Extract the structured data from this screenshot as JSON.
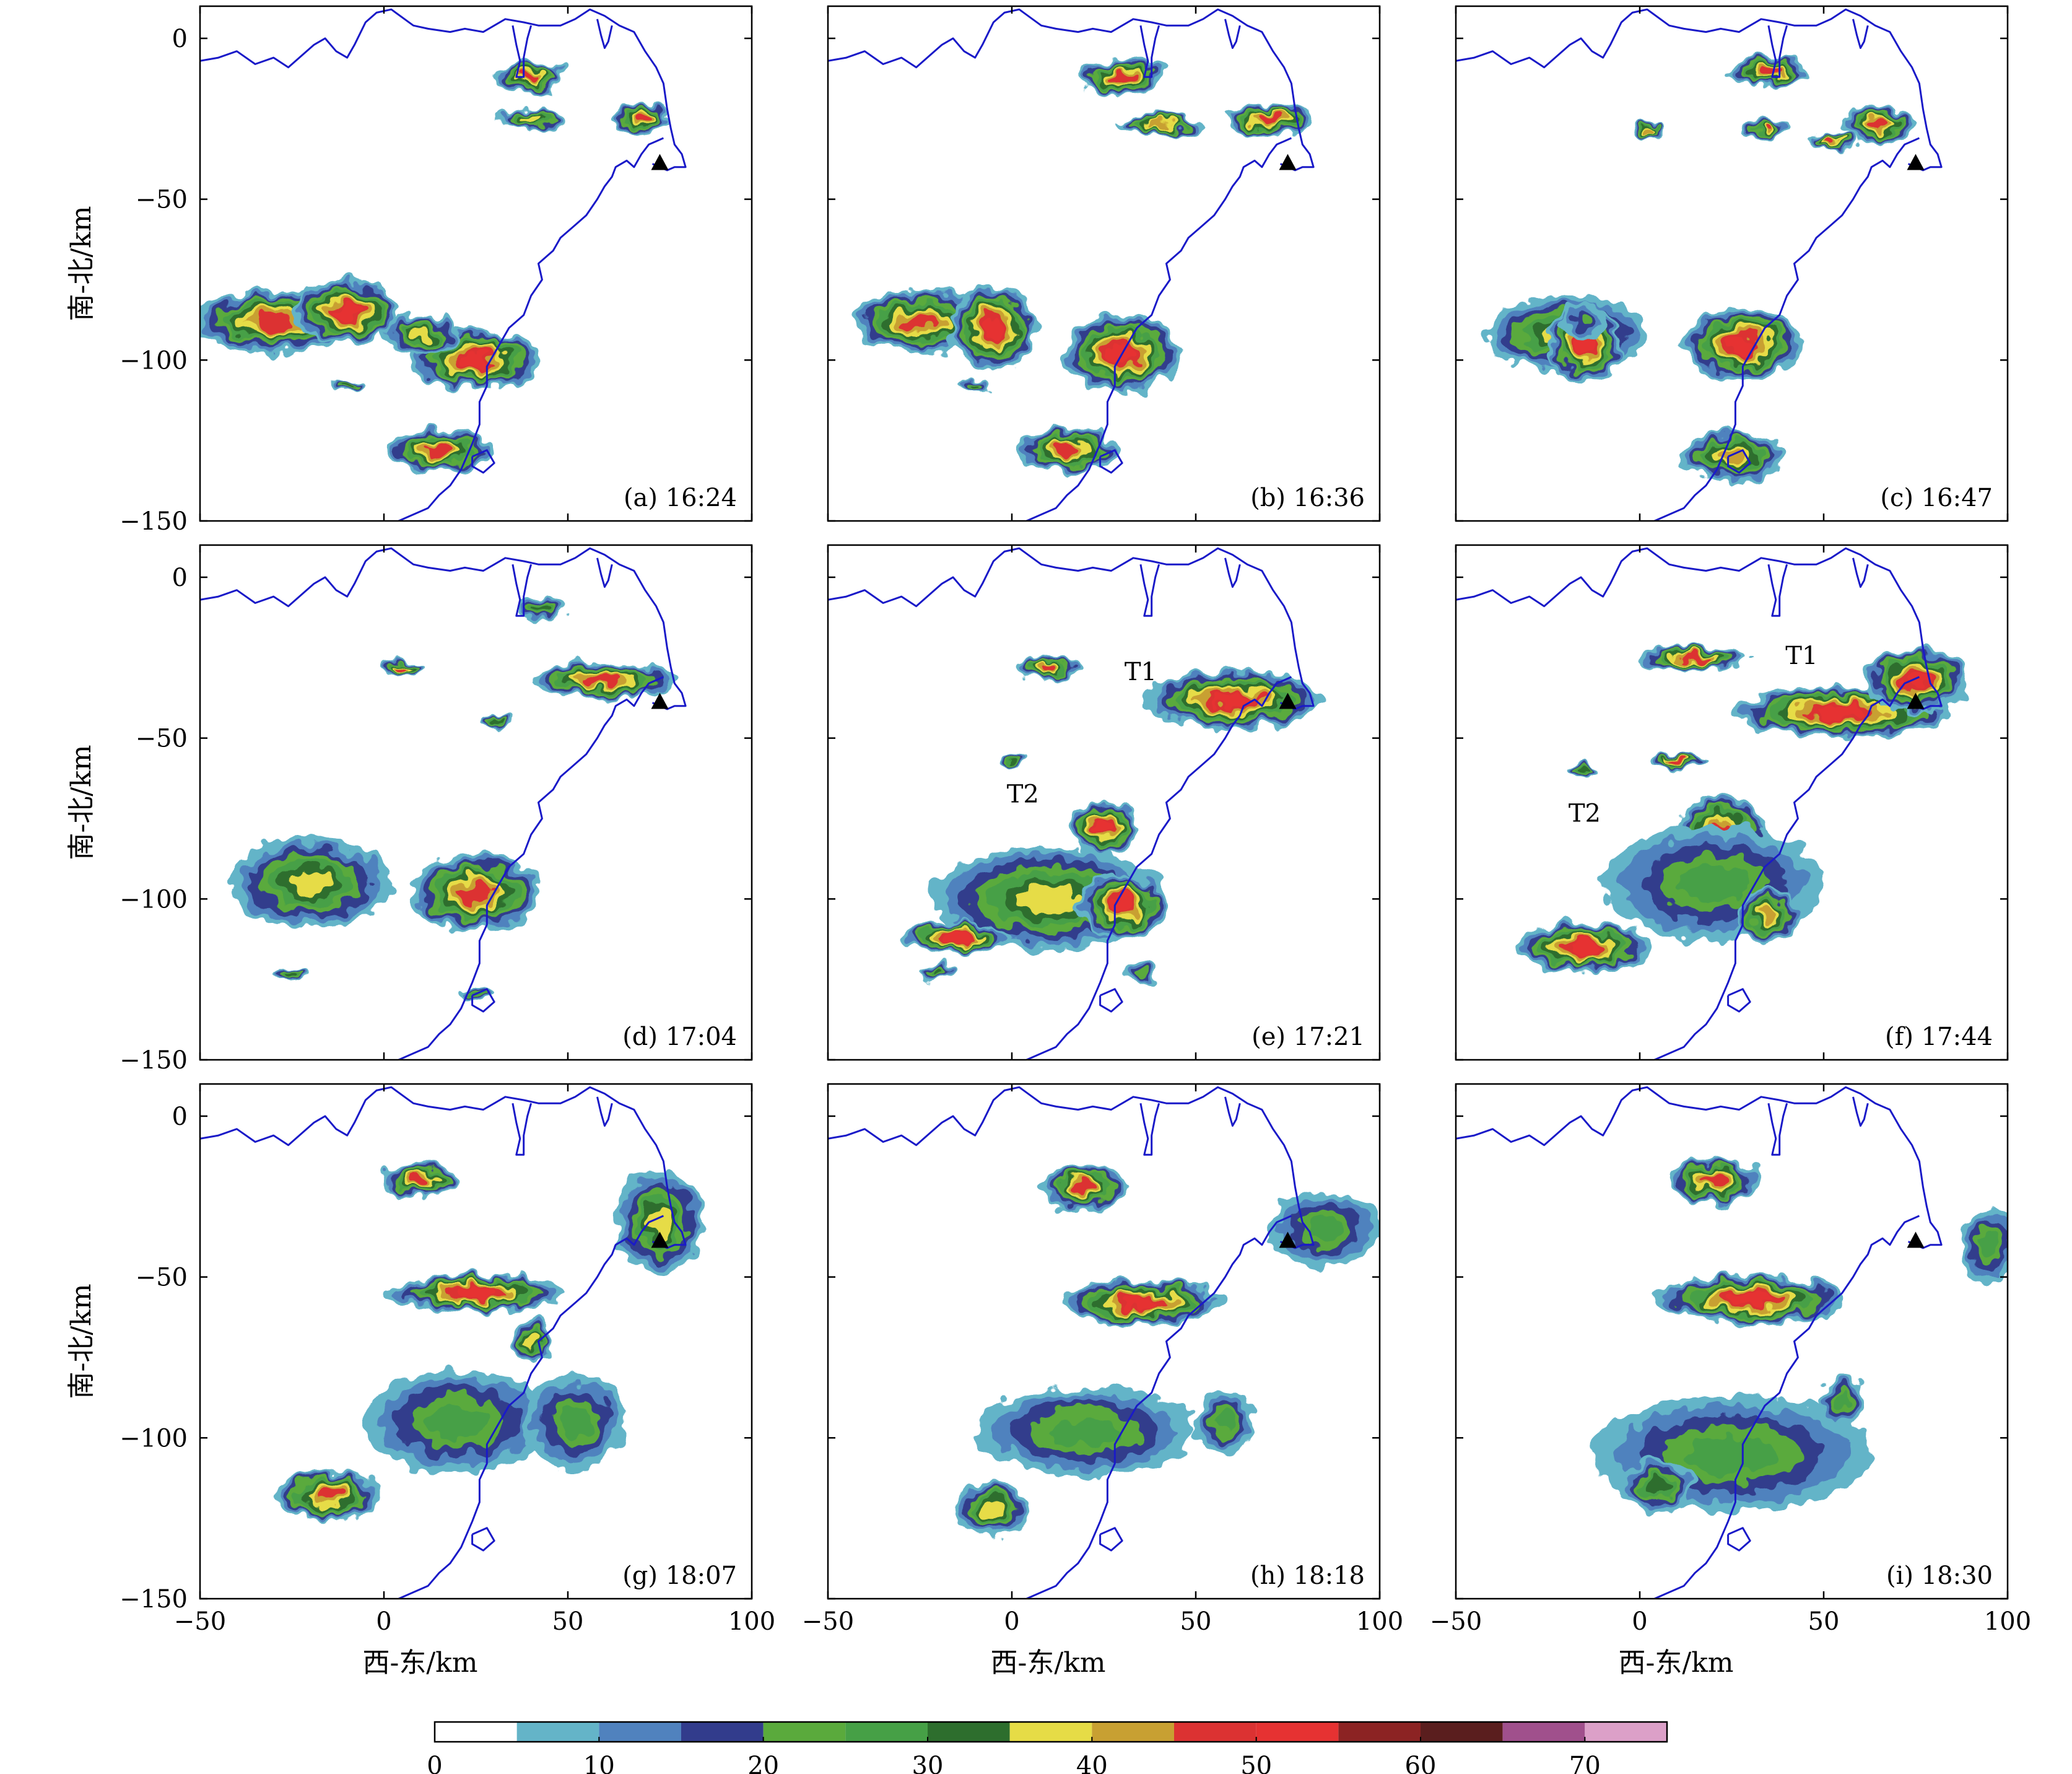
{
  "chart_data": {
    "type": "heatmap",
    "description_units": "radar reflectivity, dBZ",
    "shared": {
      "xlim": [
        -50,
        100
      ],
      "ylim": [
        -150,
        10
      ],
      "xticks": [
        -50,
        0,
        50,
        100
      ],
      "yticks": [
        0,
        -50,
        -100,
        -150
      ],
      "xlabel": "西-东/km",
      "ylabel": "南-北/km",
      "station_marker": {
        "x": 75,
        "y": -39
      }
    },
    "colorbar": {
      "ticks": [
        0,
        10,
        20,
        30,
        40,
        50,
        60,
        70
      ],
      "bounds": [
        0,
        5,
        10,
        15,
        20,
        25,
        30,
        35,
        40,
        45,
        50,
        55,
        60,
        65,
        70,
        75
      ],
      "colors": [
        "#ffffff",
        "#64b4c8",
        "#5082be",
        "#323c8c",
        "#5aaa3c",
        "#46a046",
        "#2d6e2d",
        "#e6dc46",
        "#c8a032",
        "#dc3232",
        "#e63232",
        "#8c2323",
        "#5a1e1e",
        "#a0508c",
        "#dca0c8"
      ]
    },
    "panels": [
      {
        "label": "(a) 16:24",
        "time": "16:24",
        "storms": [
          {
            "x": -30,
            "y": -88,
            "rx": 22,
            "ry": 10,
            "peak": 52
          },
          {
            "x": -10,
            "y": -85,
            "rx": 14,
            "ry": 10,
            "peak": 55
          },
          {
            "x": 25,
            "y": -100,
            "rx": 18,
            "ry": 9,
            "peak": 55
          },
          {
            "x": 10,
            "y": -92,
            "rx": 10,
            "ry": 6,
            "peak": 40
          },
          {
            "x": 40,
            "y": -12,
            "rx": 10,
            "ry": 5,
            "peak": 52
          },
          {
            "x": 40,
            "y": -25,
            "rx": 10,
            "ry": 3,
            "peak": 40
          },
          {
            "x": 70,
            "y": -25,
            "rx": 8,
            "ry": 5,
            "peak": 52
          },
          {
            "x": 15,
            "y": -128,
            "rx": 14,
            "ry": 7,
            "peak": 50
          },
          {
            "x": -10,
            "y": -108,
            "rx": 4,
            "ry": 2,
            "peak": 35
          }
        ]
      },
      {
        "label": "(b) 16:36",
        "time": "16:36",
        "storms": [
          {
            "x": -25,
            "y": -88,
            "rx": 18,
            "ry": 10,
            "peak": 52
          },
          {
            "x": -5,
            "y": -90,
            "rx": 12,
            "ry": 13,
            "peak": 55
          },
          {
            "x": 30,
            "y": -98,
            "rx": 16,
            "ry": 12,
            "peak": 55
          },
          {
            "x": 30,
            "y": -12,
            "rx": 12,
            "ry": 6,
            "peak": 52
          },
          {
            "x": 40,
            "y": -27,
            "rx": 12,
            "ry": 3,
            "peak": 45
          },
          {
            "x": 70,
            "y": -25,
            "rx": 12,
            "ry": 5,
            "peak": 52
          },
          {
            "x": 15,
            "y": -128,
            "rx": 14,
            "ry": 7,
            "peak": 48
          },
          {
            "x": -10,
            "y": -108,
            "rx": 4,
            "ry": 2,
            "peak": 35
          }
        ]
      },
      {
        "label": "(c) 16:47",
        "time": "16:47",
        "storms": [
          {
            "x": -20,
            "y": -92,
            "rx": 22,
            "ry": 12,
            "peak": 40
          },
          {
            "x": -15,
            "y": -95,
            "rx": 10,
            "ry": 12,
            "peak": 55
          },
          {
            "x": 28,
            "y": -95,
            "rx": 16,
            "ry": 12,
            "peak": 55
          },
          {
            "x": 35,
            "y": -10,
            "rx": 10,
            "ry": 5,
            "peak": 52
          },
          {
            "x": 65,
            "y": -27,
            "rx": 10,
            "ry": 6,
            "peak": 52
          },
          {
            "x": 35,
            "y": -28,
            "rx": 6,
            "ry": 4,
            "peak": 50
          },
          {
            "x": 52,
            "y": -32,
            "rx": 6,
            "ry": 3,
            "peak": 50
          },
          {
            "x": 3,
            "y": -28,
            "rx": 4,
            "ry": 3,
            "peak": 45
          },
          {
            "x": 25,
            "y": -130,
            "rx": 14,
            "ry": 8,
            "peak": 45
          },
          {
            "x": -15,
            "y": -88,
            "rx": 6,
            "ry": 6,
            "peak": 25
          }
        ]
      },
      {
        "label": "(d) 17:04",
        "time": "17:04",
        "storms": [
          {
            "x": -20,
            "y": -95,
            "rx": 22,
            "ry": 14,
            "peak": 42
          },
          {
            "x": 25,
            "y": -98,
            "rx": 18,
            "ry": 12,
            "peak": 48
          },
          {
            "x": 60,
            "y": -32,
            "rx": 20,
            "ry": 6,
            "peak": 48
          },
          {
            "x": 43,
            "y": -10,
            "rx": 7,
            "ry": 4,
            "peak": 35
          },
          {
            "x": 5,
            "y": -28,
            "rx": 5,
            "ry": 3,
            "peak": 50
          },
          {
            "x": 30,
            "y": -45,
            "rx": 4,
            "ry": 2,
            "peak": 35
          },
          {
            "x": -25,
            "y": -123,
            "rx": 5,
            "ry": 2,
            "peak": 35
          },
          {
            "x": 25,
            "y": -130,
            "rx": 5,
            "ry": 3,
            "peak": 30
          }
        ]
      },
      {
        "label": "(e) 17:21",
        "time": "17:21",
        "storms": [
          {
            "x": 60,
            "y": -38,
            "rx": 24,
            "ry": 9,
            "peak": 55
          },
          {
            "x": 10,
            "y": -100,
            "rx": 32,
            "ry": 16,
            "peak": 42
          },
          {
            "x": -15,
            "y": -112,
            "rx": 15,
            "ry": 5,
            "peak": 55
          },
          {
            "x": 25,
            "y": -78,
            "rx": 10,
            "ry": 8,
            "peak": 55
          },
          {
            "x": 30,
            "y": -102,
            "rx": 12,
            "ry": 10,
            "peak": 55
          },
          {
            "x": 10,
            "y": -28,
            "rx": 8,
            "ry": 4,
            "peak": 48
          },
          {
            "x": -20,
            "y": -122,
            "rx": 5,
            "ry": 3,
            "peak": 35
          },
          {
            "x": 35,
            "y": -123,
            "rx": 4,
            "ry": 4,
            "peak": 25
          },
          {
            "x": 0,
            "y": -57,
            "rx": 3,
            "ry": 2,
            "peak": 35
          }
        ]
      },
      {
        "label": "(f) 17:44",
        "time": "17:44",
        "storms": [
          {
            "x": 55,
            "y": -42,
            "rx": 30,
            "ry": 8,
            "peak": 55
          },
          {
            "x": 75,
            "y": -32,
            "rx": 14,
            "ry": 10,
            "peak": 55
          },
          {
            "x": 22,
            "y": -78,
            "rx": 12,
            "ry": 10,
            "peak": 52
          },
          {
            "x": 20,
            "y": -95,
            "rx": 30,
            "ry": 18,
            "peak": 28
          },
          {
            "x": 35,
            "y": -105,
            "rx": 8,
            "ry": 9,
            "peak": 45
          },
          {
            "x": -15,
            "y": -115,
            "rx": 18,
            "ry": 8,
            "peak": 55
          },
          {
            "x": 15,
            "y": -25,
            "rx": 15,
            "ry": 4,
            "peak": 52
          },
          {
            "x": 10,
            "y": -57,
            "rx": 8,
            "ry": 3,
            "peak": 50
          },
          {
            "x": -15,
            "y": -60,
            "rx": 4,
            "ry": 2,
            "peak": 35
          }
        ]
      },
      {
        "label": "(g) 18:07",
        "time": "18:07",
        "storms": [
          {
            "x": 25,
            "y": -55,
            "rx": 24,
            "ry": 6,
            "peak": 55
          },
          {
            "x": 75,
            "y": -33,
            "rx": 12,
            "ry": 16,
            "peak": 42
          },
          {
            "x": 10,
            "y": -20,
            "rx": 10,
            "ry": 6,
            "peak": 52
          },
          {
            "x": 20,
            "y": -95,
            "rx": 26,
            "ry": 16,
            "peak": 30
          },
          {
            "x": 52,
            "y": -95,
            "rx": 14,
            "ry": 15,
            "peak": 28
          },
          {
            "x": -15,
            "y": -118,
            "rx": 14,
            "ry": 8,
            "peak": 52
          },
          {
            "x": 40,
            "y": -70,
            "rx": 6,
            "ry": 6,
            "peak": 38
          }
        ]
      },
      {
        "label": "(h) 18:18",
        "time": "18:18",
        "storms": [
          {
            "x": 35,
            "y": -58,
            "rx": 22,
            "ry": 7,
            "peak": 55
          },
          {
            "x": 20,
            "y": -22,
            "rx": 12,
            "ry": 7,
            "peak": 52
          },
          {
            "x": 85,
            "y": -35,
            "rx": 15,
            "ry": 12,
            "peak": 28
          },
          {
            "x": 20,
            "y": -98,
            "rx": 30,
            "ry": 14,
            "peak": 30
          },
          {
            "x": 58,
            "y": -95,
            "rx": 8,
            "ry": 10,
            "peak": 28
          },
          {
            "x": -5,
            "y": -122,
            "rx": 10,
            "ry": 9,
            "peak": 40
          }
        ]
      },
      {
        "label": "(i) 18:30",
        "time": "18:30",
        "storms": [
          {
            "x": 30,
            "y": -57,
            "rx": 26,
            "ry": 8,
            "peak": 55
          },
          {
            "x": 20,
            "y": -20,
            "rx": 12,
            "ry": 7,
            "peak": 48
          },
          {
            "x": 95,
            "y": -40,
            "rx": 8,
            "ry": 12,
            "peak": 28
          },
          {
            "x": 25,
            "y": -105,
            "rx": 38,
            "ry": 18,
            "peak": 28
          },
          {
            "x": 5,
            "y": -115,
            "rx": 10,
            "ry": 8,
            "peak": 35
          },
          {
            "x": 55,
            "y": -88,
            "rx": 6,
            "ry": 8,
            "peak": 28
          }
        ]
      }
    ],
    "annotations": [
      {
        "panel": 4,
        "text": "T1",
        "x": 35,
        "y": -32
      },
      {
        "panel": 4,
        "text": "T2",
        "x": 3,
        "y": -70
      },
      {
        "panel": 5,
        "text": "T1",
        "x": 44,
        "y": -27
      },
      {
        "panel": 5,
        "text": "T2",
        "x": -15,
        "y": -76
      }
    ]
  }
}
